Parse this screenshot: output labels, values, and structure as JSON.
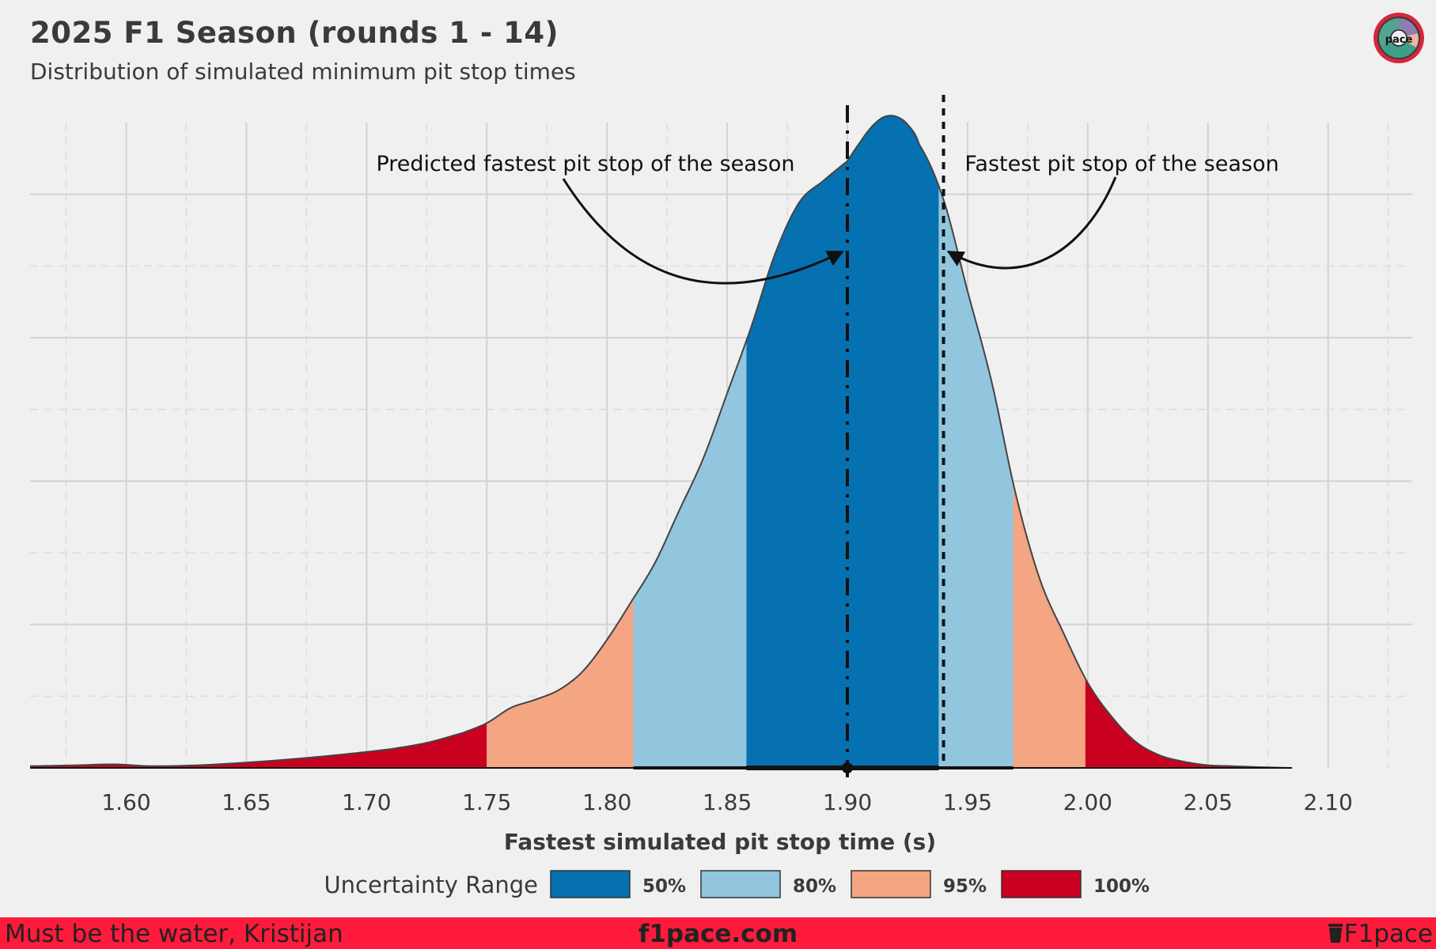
{
  "header": {
    "title": "2025 F1 Season (rounds 1 - 14)",
    "subtitle": "Distribution of simulated minimum pit stop times"
  },
  "footer": {
    "left": "Must be the water, Kristijan",
    "center": "f1pace.com",
    "right": "F1pace"
  },
  "logo": {
    "text": "pace",
    "icon": "f1pace-gauge-logo"
  },
  "colors": {
    "background": "#f0f0f0",
    "r50": "#0571b0",
    "r80": "#92c5de",
    "r95": "#f4a582",
    "r100": "#ca0020",
    "footer": "#ff1a3c"
  },
  "chart_data": {
    "type": "area",
    "xlabel": "Fastest simulated pit stop time (s)",
    "ylabel": "",
    "xlim": [
      1.56,
      2.135
    ],
    "ylim": [
      0,
      0.0072
    ],
    "grid": true,
    "xticks": [
      "1.60",
      "1.65",
      "1.70",
      "1.75",
      "1.80",
      "1.85",
      "1.90",
      "1.95",
      "2.00",
      "2.05",
      "2.10"
    ],
    "density": {
      "x": [
        1.56,
        1.58,
        1.595,
        1.61,
        1.63,
        1.65,
        1.67,
        1.69,
        1.71,
        1.725,
        1.74,
        1.75,
        1.76,
        1.77,
        1.78,
        1.79,
        1.8,
        1.81,
        1.82,
        1.83,
        1.84,
        1.85,
        1.86,
        1.87,
        1.88,
        1.89,
        1.9,
        1.905,
        1.91,
        1.915,
        1.92,
        1.925,
        1.93,
        1.94,
        1.95,
        1.96,
        1.97,
        1.98,
        1.99,
        2.0,
        2.01,
        2.02,
        2.03,
        2.04,
        2.05,
        2.06,
        2.07,
        2.085
      ],
      "y": [
        2e-05,
        3e-05,
        4e-05,
        2e-05,
        3e-05,
        6e-05,
        0.0001,
        0.00015,
        0.00021,
        0.00028,
        0.00039,
        0.0005,
        0.00067,
        0.00076,
        0.00087,
        0.00108,
        0.00143,
        0.00185,
        0.00229,
        0.00287,
        0.00345,
        0.00418,
        0.00492,
        0.00574,
        0.00631,
        0.00655,
        0.00677,
        0.00697,
        0.00715,
        0.00726,
        0.00727,
        0.00718,
        0.00695,
        0.00634,
        0.00532,
        0.00431,
        0.00306,
        0.00211,
        0.0015,
        0.00095,
        0.00057,
        0.00029,
        0.00014,
        7e-05,
        3e-05,
        2e-05,
        1e-05,
        0.0
      ]
    },
    "ranges": [
      {
        "name": "100%",
        "from": 1.56,
        "to": 1.75,
        "color": "#ca0020"
      },
      {
        "name": "95%",
        "from": 1.75,
        "to": 1.811,
        "color": "#f4a582"
      },
      {
        "name": "80%",
        "from": 1.811,
        "to": 1.858,
        "color": "#92c5de"
      },
      {
        "name": "50%",
        "from": 1.858,
        "to": 1.938,
        "color": "#0571b0"
      },
      {
        "name": "80%",
        "from": 1.938,
        "to": 1.969,
        "color": "#92c5de"
      },
      {
        "name": "95%",
        "from": 1.969,
        "to": 1.999,
        "color": "#f4a582"
      },
      {
        "name": "100%",
        "from": 1.999,
        "to": 2.085,
        "color": "#ca0020"
      }
    ],
    "interval_bar": {
      "thin": [
        1.75,
        2.085
      ],
      "medium": [
        1.811,
        1.969
      ],
      "thick": [
        1.858,
        1.938
      ],
      "point": 1.9
    },
    "predicted_line": 1.9,
    "actual_line": 1.94,
    "annotations": [
      {
        "text": "Predicted fastest pit stop of the season",
        "target_x": 1.9,
        "target_y": 0.00576
      },
      {
        "text": "Fastest pit stop of the season",
        "target_x": 1.94,
        "target_y": 0.00576
      }
    ],
    "legend": {
      "title": "Uncertainty Range",
      "position": "bottom",
      "entries": [
        {
          "label": "50%",
          "color": "#0571b0"
        },
        {
          "label": "80%",
          "color": "#92c5de"
        },
        {
          "label": "95%",
          "color": "#f4a582"
        },
        {
          "label": "100%",
          "color": "#ca0020"
        }
      ]
    }
  }
}
